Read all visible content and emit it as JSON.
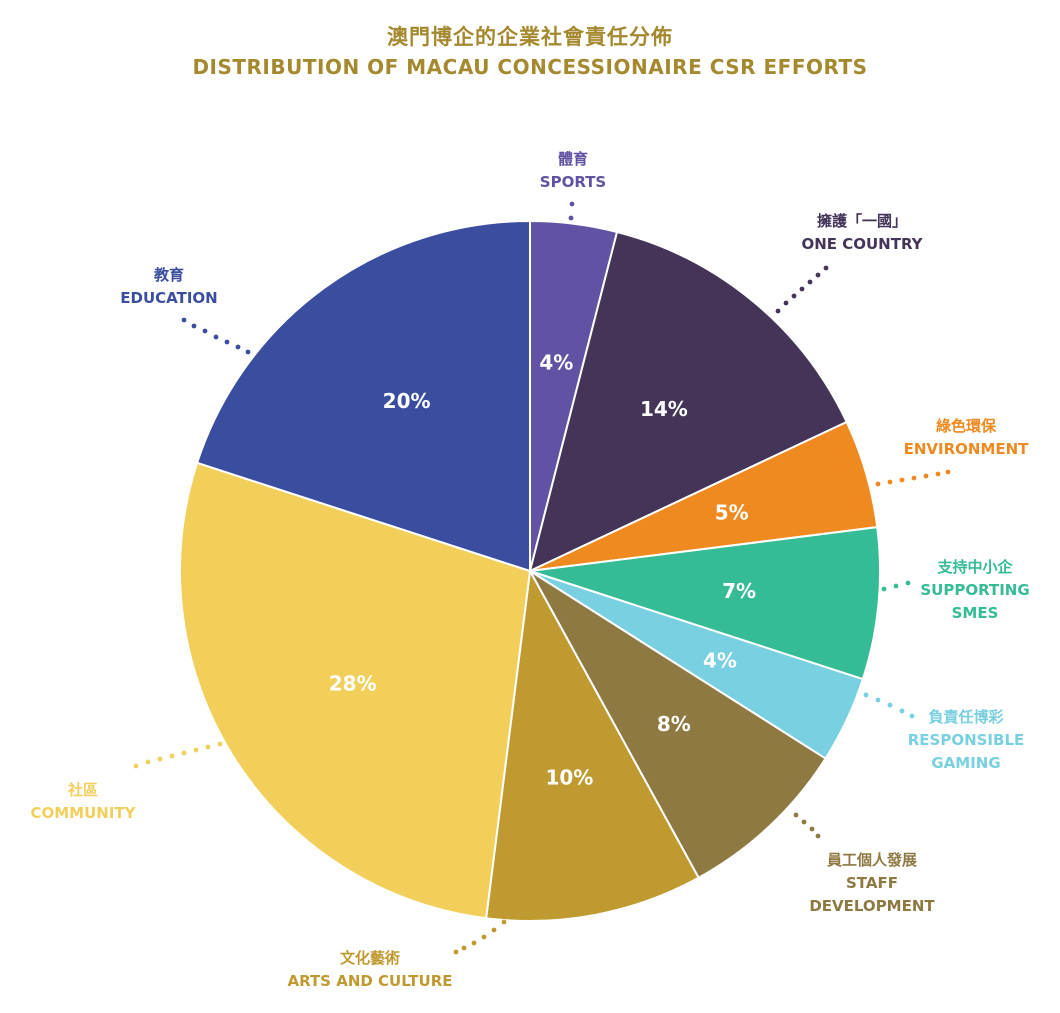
{
  "chart_data": {
    "type": "pie",
    "title": "澳門博企的企業社會責任分佈",
    "subtitle": "DISTRIBUTION OF MACAU CONCESSIONAIRE CSR EFFORTS",
    "slices": [
      {
        "key": "sports",
        "value": 4,
        "label": "4%",
        "name_zh": "體育",
        "name_en": [
          "SPORTS"
        ],
        "color": "#6152a3"
      },
      {
        "key": "one-country",
        "value": 14,
        "label": "14%",
        "name_zh": "擁護「一國」",
        "name_en": [
          "ONE COUNTRY"
        ],
        "color": "#433458"
      },
      {
        "key": "environment",
        "value": 5,
        "label": "5%",
        "name_zh": "綠色環保",
        "name_en": [
          "ENVIRONMENT"
        ],
        "color": "#ef8a21"
      },
      {
        "key": "supporting-smes",
        "value": 7,
        "label": "7%",
        "name_zh": "支持中小企",
        "name_en": [
          "SUPPORTING",
          "SMES"
        ],
        "color": "#35bb95"
      },
      {
        "key": "responsible-gaming",
        "value": 4,
        "label": "4%",
        "name_zh": "負責任博彩",
        "name_en": [
          "RESPONSIBLE",
          "GAMING"
        ],
        "color": "#78d0e0"
      },
      {
        "key": "staff-development",
        "value": 8,
        "label": "8%",
        "name_zh": "員工個人發展",
        "name_en": [
          "STAFF",
          "DEVELOPMENT"
        ],
        "color": "#8e7942"
      },
      {
        "key": "arts-and-culture",
        "value": 10,
        "label": "10%",
        "name_zh": "文化藝術",
        "name_en": [
          "ARTS AND CULTURE"
        ],
        "color": "#bf9a30"
      },
      {
        "key": "community",
        "value": 28,
        "label": "28%",
        "name_zh": "社區",
        "name_en": [
          "COMMUNITY"
        ],
        "color": "#f2cf5b"
      },
      {
        "key": "education",
        "value": 20,
        "label": "20%",
        "name_zh": "教育",
        "name_en": [
          "EDUCATION"
        ],
        "color": "#3a4d9f"
      }
    ]
  },
  "colors": {
    "title": "#a5892f",
    "slice_border": "#ffffff",
    "percent_text": "#ffffff"
  }
}
